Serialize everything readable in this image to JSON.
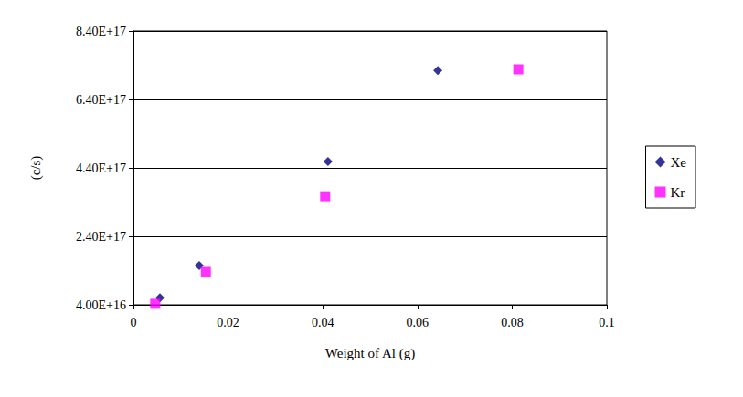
{
  "chart_data": {
    "type": "scatter",
    "x_label": "Weight of Al (g)",
    "y_label": "(c/s)",
    "series": [
      {
        "name": "Xe",
        "color": "#000080",
        "marker": "diamond",
        "x": [
          0.0056,
          0.0139,
          0.0411,
          0.0643
        ],
        "values": [
          61000000000000000,
          155000000000000000,
          459000000000000000,
          725000000000000000
        ]
      },
      {
        "name": "Kr",
        "color": "#ff00ff",
        "marker": "square",
        "x": [
          0.0046,
          0.0153,
          0.0405,
          0.0813
        ],
        "values": [
          43000000000000000,
          136000000000000000,
          357000000000000000,
          728000000000000000
        ]
      }
    ],
    "xlim": [
      0,
      0.1
    ],
    "xticks": [
      0,
      0.02,
      0.04,
      0.06,
      0.08,
      0.1
    ],
    "ylim": [
      40000000000000000,
      840000000000000000
    ],
    "yticks": [
      {
        "value": 40000000000000000,
        "label": "4.00E+16"
      },
      {
        "value": 240000000000000000,
        "label": "2.40E+17"
      },
      {
        "value": 440000000000000000,
        "label": "4.40E+17"
      },
      {
        "value": 640000000000000000,
        "label": "6.40E+17"
      },
      {
        "value": 840000000000000000,
        "label": "8.40E+17"
      }
    ],
    "grid": true,
    "legend": "right"
  }
}
